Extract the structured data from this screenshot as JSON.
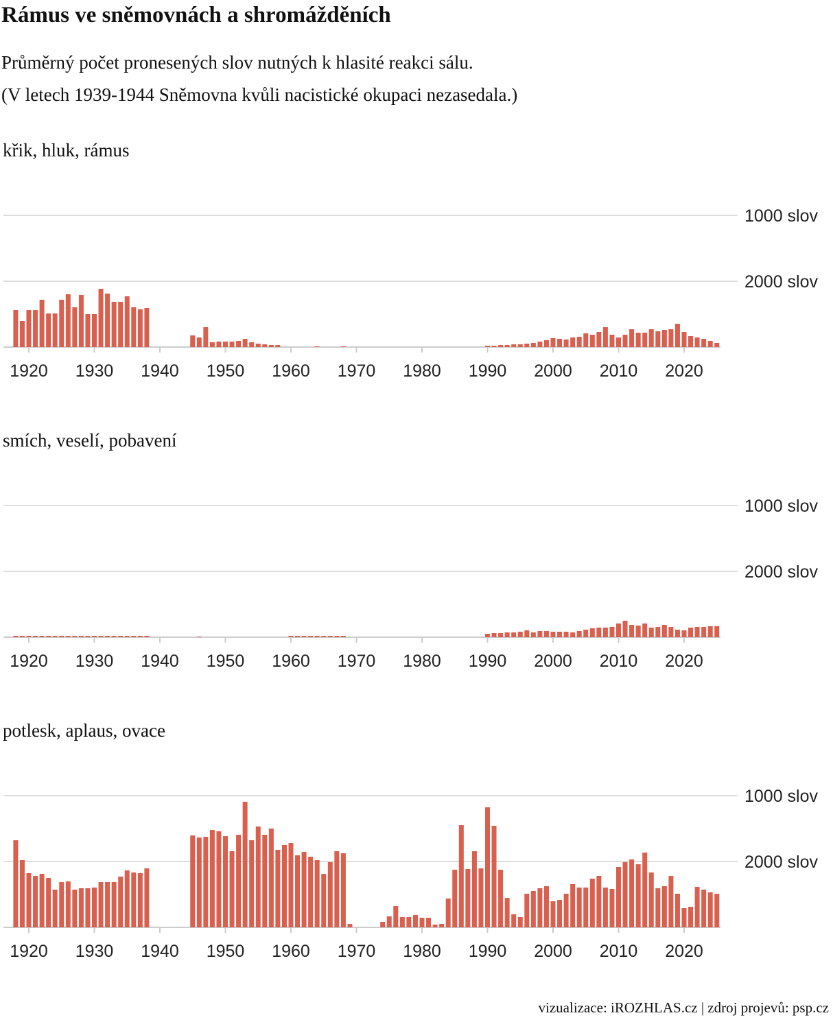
{
  "header": {
    "title": "Rámus ve sněmovnách a shromážděních",
    "subtitle": [
      "Průměrný počet pronesených slov nutných k hlasité reakci sálu.",
      "(V letech 1939-1944 Sněmovna kvůli nacistické okupaci nezasedala.)"
    ]
  },
  "source": "vizualizace: iROZHLAS.cz | zdroj projevů: psp.cz",
  "chart_data": [
    {
      "type": "bar",
      "title": "křik, hluk, rámus",
      "color": "#d95f4e",
      "yscale": "reciprocal",
      "ylim": [
        null,
        1000
      ],
      "yticks": [
        {
          "value": 1000,
          "label": "1000 slov"
        },
        {
          "value": 2000,
          "label": "2000 slov"
        }
      ],
      "xticks": [
        1920,
        1930,
        1940,
        1950,
        1960,
        1970,
        1980,
        1990,
        2000,
        2010,
        2020
      ],
      "grid": true,
      "x": [
        1918,
        1919,
        1920,
        1921,
        1922,
        1923,
        1924,
        1925,
        1926,
        1927,
        1928,
        1929,
        1930,
        1931,
        1932,
        1933,
        1934,
        1935,
        1936,
        1937,
        1938,
        1939,
        1940,
        1941,
        1942,
        1943,
        1944,
        1945,
        1946,
        1947,
        1948,
        1949,
        1950,
        1951,
        1952,
        1953,
        1954,
        1955,
        1956,
        1957,
        1958,
        1959,
        1960,
        1961,
        1962,
        1963,
        1964,
        1965,
        1966,
        1967,
        1968,
        1969,
        1970,
        1971,
        1972,
        1973,
        1974,
        1975,
        1976,
        1977,
        1978,
        1979,
        1980,
        1981,
        1982,
        1983,
        1984,
        1985,
        1986,
        1987,
        1988,
        1989,
        1990,
        1991,
        1992,
        1993,
        1994,
        1995,
        1996,
        1997,
        1998,
        1999,
        2000,
        2001,
        2002,
        2003,
        2004,
        2005,
        2006,
        2007,
        2008,
        2009,
        2010,
        2011,
        2012,
        2013,
        2014,
        2015,
        2016,
        2017,
        2018,
        2019,
        2020,
        2021,
        2022,
        2023,
        2024,
        2025
      ],
      "values": [
        3556,
        5053,
        3556,
        3556,
        2783,
        3918,
        3918,
        2783,
        2494,
        3310,
        2526,
        4000,
        4000,
        2259,
        2462,
        2909,
        2909,
        2595,
        3310,
        3491,
        3368,
        null,
        null,
        null,
        null,
        null,
        null,
        11294,
        13714,
        6621,
        27429,
        24000,
        24000,
        24000,
        21333,
        16000,
        27429,
        38400,
        48000,
        64000,
        64000,
        null,
        null,
        null,
        null,
        null,
        192000,
        null,
        null,
        null,
        192000,
        null,
        null,
        null,
        null,
        null,
        null,
        null,
        null,
        null,
        null,
        null,
        null,
        null,
        null,
        null,
        null,
        null,
        null,
        null,
        null,
        null,
        96000,
        96000,
        64000,
        64000,
        48000,
        48000,
        38400,
        32000,
        24000,
        19200,
        14769,
        16000,
        17455,
        13714,
        12800,
        9600,
        10667,
        8727,
        6621,
        10667,
        13714,
        10667,
        7385,
        9143,
        9143,
        7385,
        8348,
        7680,
        7385,
        5647,
        8727,
        12000,
        13714,
        16000,
        21333,
        32000
      ]
    },
    {
      "type": "bar",
      "title": "smích, veselí, pobavení",
      "color": "#d95f4e",
      "yscale": "reciprocal",
      "ylim": [
        null,
        1000
      ],
      "yticks": [
        {
          "value": 1000,
          "label": "1000 slov"
        },
        {
          "value": 2000,
          "label": "2000 slov"
        }
      ],
      "xticks": [
        1920,
        1930,
        1940,
        1950,
        1960,
        1970,
        1980,
        1990,
        2000,
        2010,
        2020
      ],
      "grid": true,
      "x": [
        1918,
        1919,
        1920,
        1921,
        1922,
        1923,
        1924,
        1925,
        1926,
        1927,
        1928,
        1929,
        1930,
        1931,
        1932,
        1933,
        1934,
        1935,
        1936,
        1937,
        1938,
        1939,
        1940,
        1941,
        1942,
        1943,
        1944,
        1945,
        1946,
        1947,
        1948,
        1949,
        1950,
        1951,
        1952,
        1953,
        1954,
        1955,
        1956,
        1957,
        1958,
        1959,
        1960,
        1961,
        1962,
        1963,
        1964,
        1965,
        1966,
        1967,
        1968,
        1969,
        1970,
        1971,
        1972,
        1973,
        1974,
        1975,
        1976,
        1977,
        1978,
        1979,
        1980,
        1981,
        1982,
        1983,
        1984,
        1985,
        1986,
        1987,
        1988,
        1989,
        1990,
        1991,
        1992,
        1993,
        1994,
        1995,
        1996,
        1997,
        1998,
        1999,
        2000,
        2001,
        2002,
        2003,
        2004,
        2005,
        2006,
        2007,
        2008,
        2009,
        2010,
        2011,
        2012,
        2013,
        2014,
        2015,
        2016,
        2017,
        2018,
        2019,
        2020,
        2021,
        2022,
        2023,
        2024,
        2025
      ],
      "values": [
        96000,
        96000,
        96000,
        96000,
        96000,
        96000,
        96000,
        96000,
        96000,
        96000,
        96000,
        96000,
        96000,
        96000,
        96000,
        96000,
        96000,
        96000,
        96000,
        96000,
        96000,
        null,
        null,
        null,
        null,
        null,
        null,
        null,
        192000,
        null,
        null,
        null,
        null,
        null,
        null,
        null,
        null,
        null,
        null,
        null,
        null,
        null,
        96000,
        96000,
        96000,
        96000,
        96000,
        96000,
        96000,
        96000,
        96000,
        null,
        null,
        null,
        null,
        null,
        null,
        null,
        null,
        null,
        null,
        null,
        null,
        null,
        null,
        null,
        null,
        null,
        null,
        null,
        null,
        null,
        38400,
        32000,
        32000,
        27429,
        27429,
        24000,
        19200,
        27429,
        21333,
        21333,
        24000,
        24000,
        24000,
        27429,
        21333,
        17455,
        14769,
        13714,
        13714,
        12800,
        9600,
        8000,
        10667,
        11294,
        9600,
        13714,
        12800,
        10667,
        12800,
        17455,
        19200,
        13714,
        12800,
        12800,
        12000,
        12000
      ]
    },
    {
      "type": "bar",
      "title": "potlesk, aplaus, ovace",
      "color": "#d95f4e",
      "yscale": "reciprocal",
      "ylim": [
        null,
        1000
      ],
      "yticks": [
        {
          "value": 1000,
          "label": "1000 slov"
        },
        {
          "value": 2000,
          "label": "2000 slov"
        }
      ],
      "xticks": [
        1920,
        1930,
        1940,
        1950,
        1960,
        1970,
        1980,
        1990,
        2000,
        2010,
        2020
      ],
      "grid": true,
      "x": [
        1918,
        1919,
        1920,
        1921,
        1922,
        1923,
        1924,
        1925,
        1926,
        1927,
        1928,
        1929,
        1930,
        1931,
        1932,
        1933,
        1934,
        1935,
        1936,
        1937,
        1938,
        1939,
        1940,
        1941,
        1942,
        1943,
        1944,
        1945,
        1946,
        1947,
        1948,
        1949,
        1950,
        1951,
        1952,
        1953,
        1954,
        1955,
        1956,
        1957,
        1958,
        1959,
        1960,
        1961,
        1962,
        1963,
        1964,
        1965,
        1966,
        1967,
        1968,
        1969,
        1970,
        1971,
        1972,
        1973,
        1974,
        1975,
        1976,
        1977,
        1978,
        1979,
        1980,
        1981,
        1982,
        1983,
        1984,
        1985,
        1986,
        1987,
        1988,
        1989,
        1990,
        1991,
        1992,
        1993,
        1994,
        1995,
        1996,
        1997,
        1998,
        1999,
        2000,
        2001,
        2002,
        2003,
        2004,
        2005,
        2006,
        2007,
        2008,
        2009,
        2010,
        2011,
        2012,
        2013,
        2014,
        2015,
        2016,
        2017,
        2018,
        2019,
        2020,
        2021,
        2022,
        2023,
        2024,
        2025
      ],
      "values": [
        1512,
        1959,
        2430,
        2560,
        2462,
        2667,
        3491,
        2909,
        2866,
        3491,
        3368,
        3368,
        3310,
        2909,
        2909,
        2909,
        2595,
        2313,
        2400,
        2430,
        2233,
        null,
        null,
        null,
        null,
        null,
        null,
        1433,
        1466,
        1455,
        1352,
        1371,
        1444,
        1730,
        1422,
        1049,
        1512,
        1306,
        1422,
        1333,
        1699,
        1600,
        1561,
        1829,
        1745,
        1864,
        1959,
        2462,
        2021,
        1730,
        1778,
        38400,
        null,
        null,
        null,
        null,
        24000,
        12000,
        6194,
        12800,
        12800,
        10667,
        13714,
        13714,
        48000,
        38400,
        4571,
        2286,
        1289,
        2259,
        1730,
        2233,
        1097,
        1297,
        2286,
        4465,
        10105,
        12800,
        3918,
        3623,
        3368,
        3200,
        5053,
        4800,
        3918,
        3048,
        3310,
        3310,
        2704,
        2560,
        3310,
        3429,
        2182,
        2021,
        1939,
        2087,
        1761,
        2400,
        3368,
        3200,
        2560,
        3918,
        6857,
        6400,
        3254,
        3491,
        3765,
        3918
      ]
    }
  ]
}
